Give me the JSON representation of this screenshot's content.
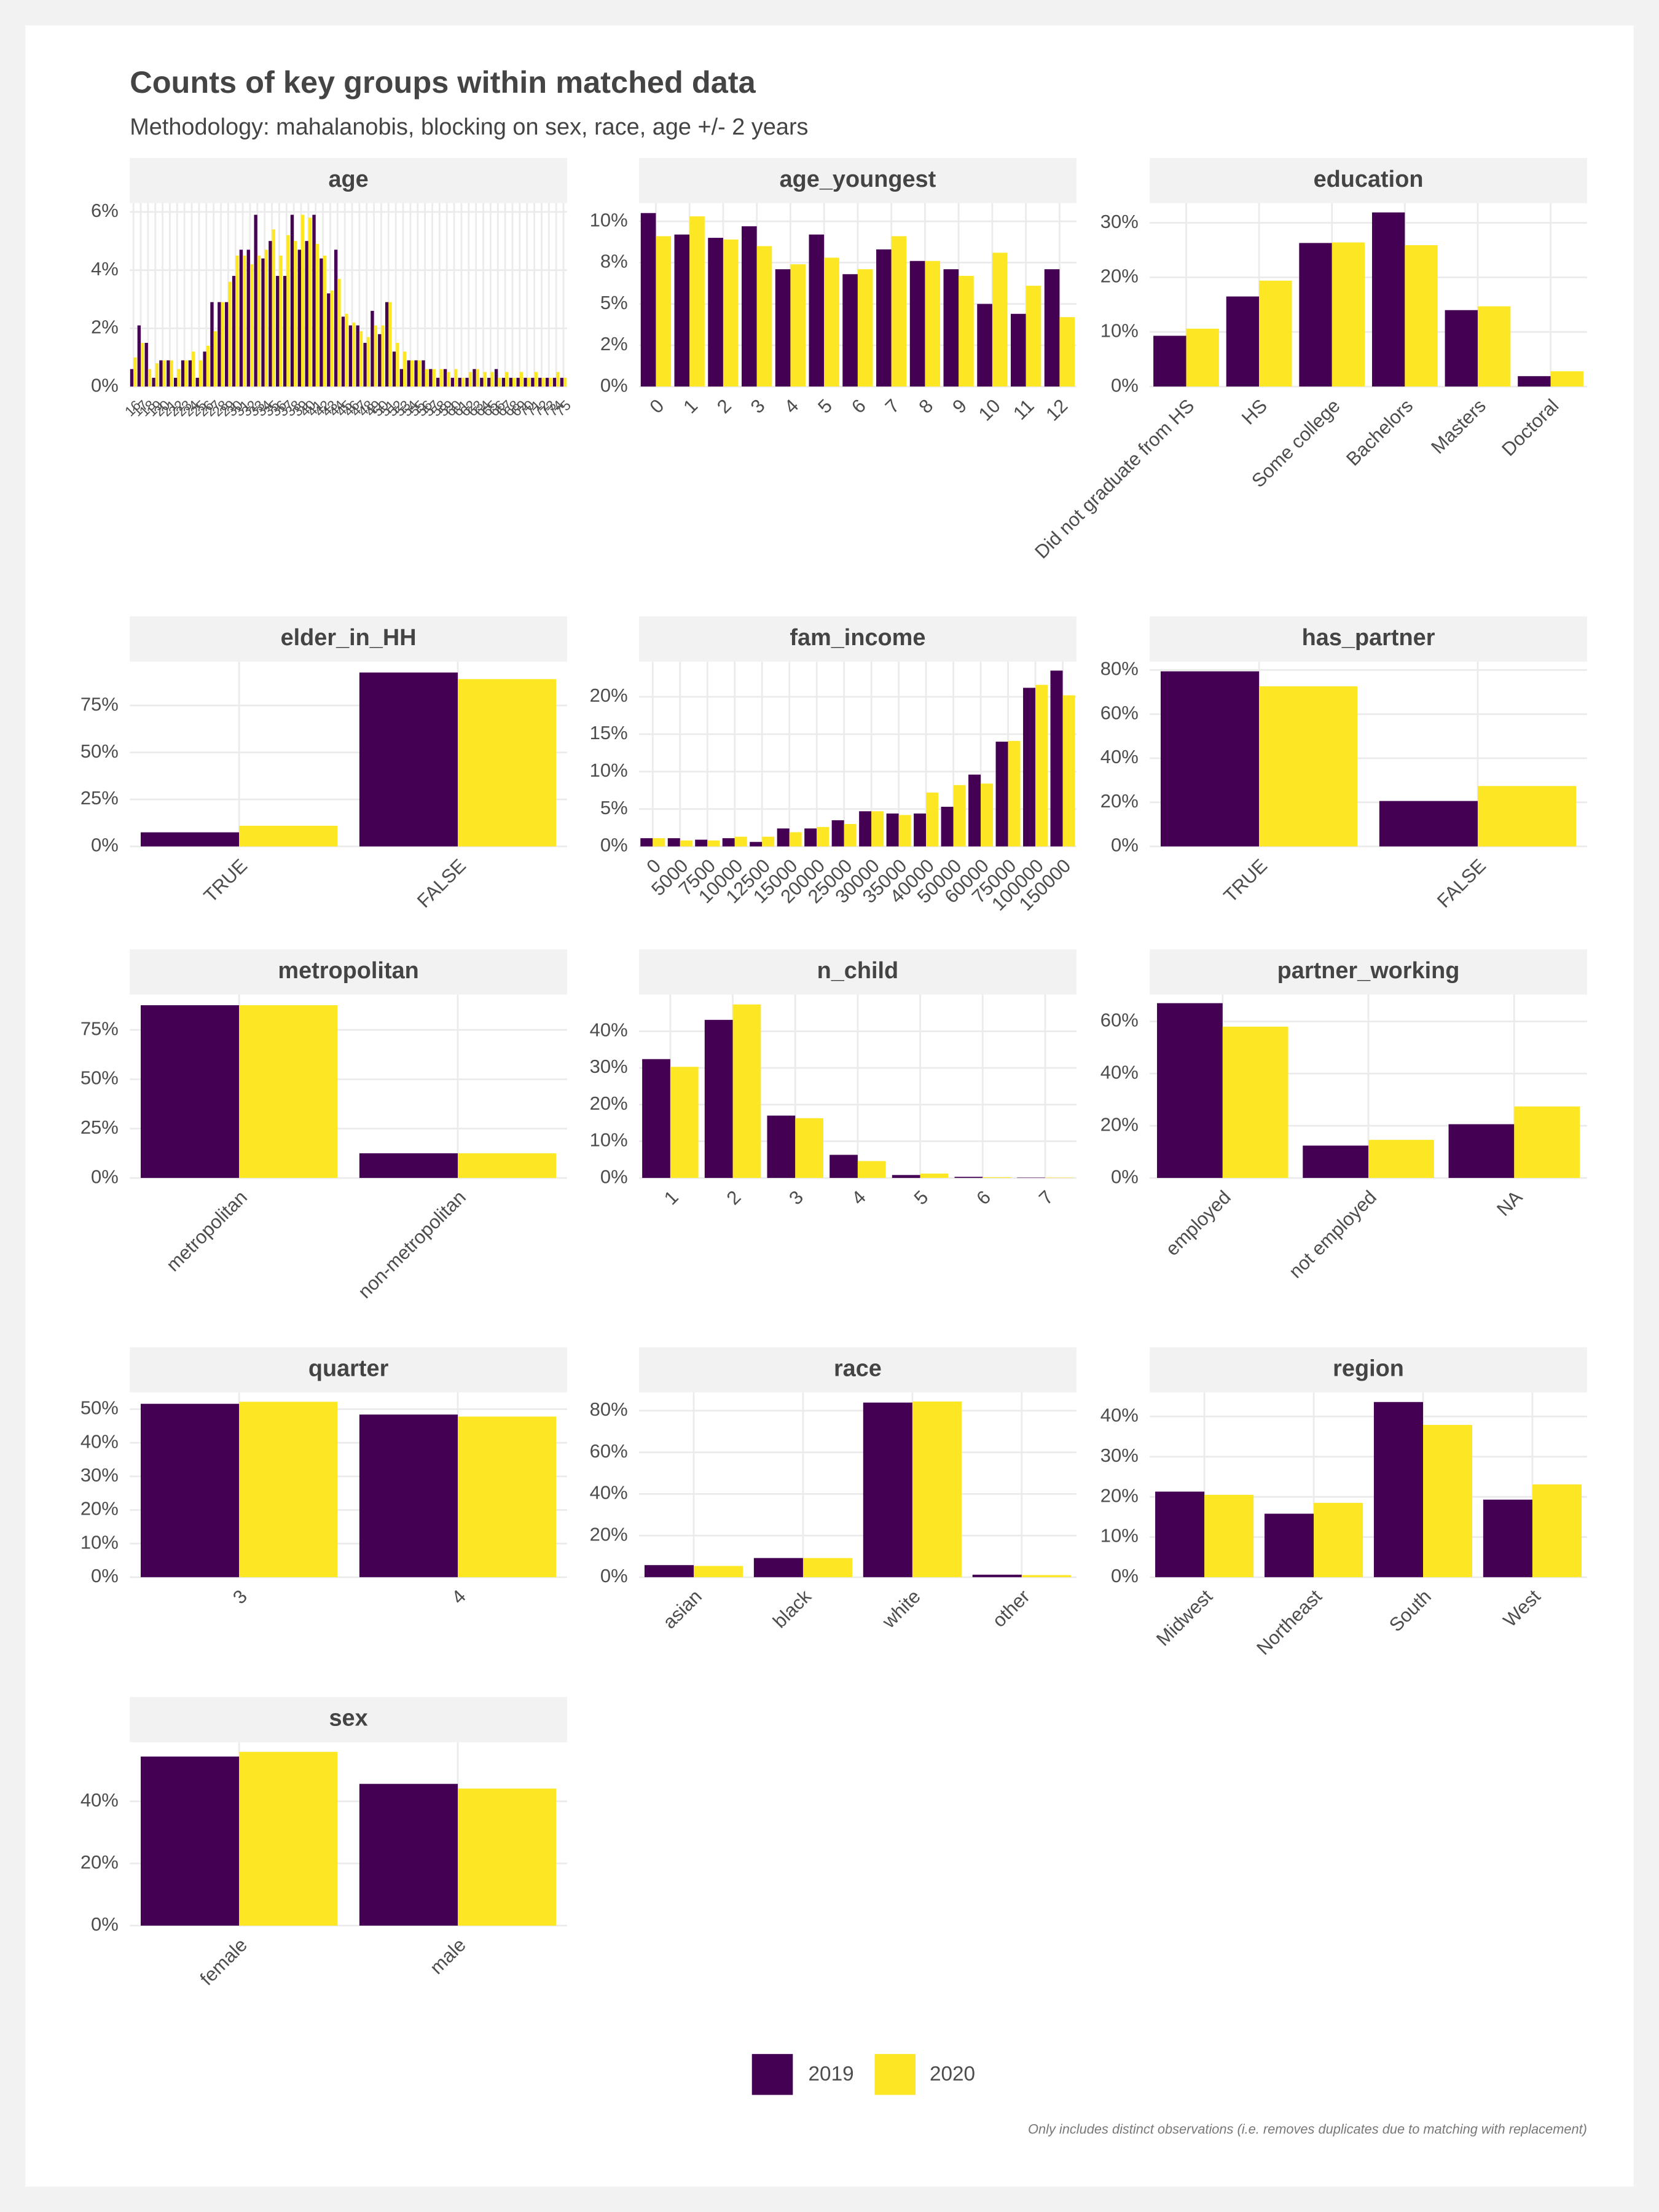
{
  "title": "Counts of key groups within matched data",
  "subtitle": "Methodology: mahalanobis, blocking on sex, race, age +/- 2 years",
  "caption": "Only includes distinct observations (i.e. removes duplicates due to matching with replacement)",
  "chart_data": [
    {
      "type": "bar",
      "title": "age",
      "categories": [
        "16",
        "17",
        "18",
        "19",
        "20",
        "21",
        "22",
        "23",
        "24",
        "25",
        "26",
        "27",
        "28",
        "29",
        "30",
        "31",
        "32",
        "33",
        "34",
        "35",
        "36",
        "37",
        "38",
        "39",
        "40",
        "41",
        "42",
        "43",
        "44",
        "45",
        "46",
        "47",
        "48",
        "49",
        "50",
        "51",
        "52",
        "53",
        "54",
        "55",
        "56",
        "57",
        "58",
        "59",
        "60",
        "61",
        "62",
        "63",
        "64",
        "65",
        "66",
        "67",
        "68",
        "69",
        "70",
        "71",
        "72",
        "73",
        "74",
        "75"
      ],
      "series": [
        {
          "name": "2019",
          "color": "#440154",
          "values": [
            0.6,
            2.1,
            1.5,
            0.3,
            0.9,
            0.9,
            0.3,
            0.9,
            0.9,
            0.3,
            1.2,
            2.9,
            2.9,
            2.9,
            3.8,
            4.7,
            4.7,
            5.9,
            4.4,
            5.0,
            3.8,
            3.8,
            5.9,
            4.7,
            5.0,
            5.9,
            4.4,
            3.2,
            4.7,
            2.4,
            2.1,
            2.1,
            1.5,
            2.6,
            1.8,
            2.9,
            1.2,
            0.6,
            0.9,
            0.9,
            0.9,
            0.6,
            0.3,
            0.6,
            0.3,
            0.3,
            0.3,
            0.6,
            0.3,
            0.3,
            0.6,
            0.3,
            0.3,
            0.3,
            0.3,
            0.3,
            0.3,
            0.3,
            0.3,
            0.3
          ]
        },
        {
          "name": "2020",
          "color": "#FDE725",
          "values": [
            1.0,
            1.5,
            0.6,
            0.8,
            0.9,
            0.9,
            0.6,
            0.9,
            1.2,
            0.9,
            1.4,
            1.9,
            2.9,
            3.6,
            4.5,
            4.5,
            4.2,
            4.5,
            4.7,
            5.4,
            4.5,
            5.2,
            5.0,
            5.9,
            5.8,
            4.9,
            4.5,
            3.3,
            3.7,
            2.5,
            2.2,
            1.9,
            1.7,
            2.1,
            2.1,
            2.9,
            1.5,
            1.2,
            0.9,
            0.9,
            0.6,
            0.6,
            0.6,
            0.5,
            0.6,
            0.3,
            0.5,
            0.6,
            0.5,
            0.5,
            0.3,
            0.5,
            0.3,
            0.5,
            0.3,
            0.5,
            0.3,
            0.3,
            0.5,
            0.3
          ]
        }
      ],
      "ylim": [
        0,
        6.3
      ],
      "yticks": [
        {
          "value": 0,
          "label": "0%"
        },
        {
          "value": 2,
          "label": "2%"
        },
        {
          "value": 4,
          "label": "4%"
        },
        {
          "value": 6,
          "label": "6%"
        }
      ]
    },
    {
      "type": "bar",
      "title": "age_youngest",
      "categories": [
        "0",
        "1",
        "2",
        "3",
        "4",
        "5",
        "6",
        "7",
        "8",
        "9",
        "10",
        "11",
        "12"
      ],
      "series": [
        {
          "name": "2019",
          "color": "#440154",
          "values": [
            10.5,
            9.2,
            9.0,
            9.7,
            7.1,
            9.2,
            6.8,
            8.3,
            7.6,
            7.1,
            5.0,
            4.4,
            7.1
          ]
        },
        {
          "name": "2020",
          "color": "#FDE725",
          "values": [
            9.1,
            10.3,
            8.9,
            8.5,
            7.4,
            7.8,
            7.1,
            9.1,
            7.6,
            6.7,
            8.1,
            6.1,
            4.2
          ]
        }
      ],
      "ylim": [
        0,
        11.1
      ],
      "yticks": [
        {
          "value": 0,
          "label": "0%"
        },
        {
          "value": 2.5,
          "label": "2%"
        },
        {
          "value": 5,
          "label": "5%"
        },
        {
          "value": 7.5,
          "label": "8%"
        },
        {
          "value": 10,
          "label": "10%"
        }
      ]
    },
    {
      "type": "bar",
      "title": "education",
      "categories": [
        "Did not graduate from HS",
        "HS",
        "Some college",
        "Bachelors",
        "Masters",
        "Doctoral"
      ],
      "series": [
        {
          "name": "2019",
          "color": "#440154",
          "values": [
            9.3,
            16.5,
            26.3,
            31.9,
            14.0,
            1.9
          ]
        },
        {
          "name": "2020",
          "color": "#FDE725",
          "values": [
            10.6,
            19.4,
            26.4,
            25.9,
            14.7,
            2.8
          ]
        }
      ],
      "ylim": [
        0,
        33.6
      ],
      "yticks": [
        {
          "value": 0,
          "label": "0%"
        },
        {
          "value": 10,
          "label": "10%"
        },
        {
          "value": 20,
          "label": "20%"
        },
        {
          "value": 30,
          "label": "30%"
        }
      ]
    },
    {
      "type": "bar",
      "title": "elder_in_HH",
      "categories": [
        "TRUE",
        "FALSE"
      ],
      "series": [
        {
          "name": "2019",
          "color": "#440154",
          "values": [
            7.5,
            92.5
          ]
        },
        {
          "name": "2020",
          "color": "#FDE725",
          "values": [
            11,
            89
          ]
        }
      ],
      "ylim": [
        0,
        98.3
      ],
      "yticks": [
        {
          "value": 0,
          "label": "0%"
        },
        {
          "value": 25,
          "label": "25%"
        },
        {
          "value": 50,
          "label": "50%"
        },
        {
          "value": 75,
          "label": "75%"
        }
      ]
    },
    {
      "type": "bar",
      "title": "fam_income",
      "categories": [
        "0",
        "5000",
        "7500",
        "10000",
        "12500",
        "15000",
        "20000",
        "25000",
        "30000",
        "35000",
        "40000",
        "50000",
        "60000",
        "75000",
        "100000",
        "150000"
      ],
      "series": [
        {
          "name": "2019",
          "color": "#440154",
          "values": [
            1.1,
            1.1,
            0.9,
            1.1,
            0.6,
            2.4,
            2.4,
            3.5,
            4.7,
            4.4,
            4.4,
            5.3,
            9.6,
            14.0,
            21.2,
            23.5
          ]
        },
        {
          "name": "2020",
          "color": "#FDE725",
          "values": [
            1.1,
            0.8,
            0.8,
            1.3,
            1.3,
            1.9,
            2.6,
            3.0,
            4.7,
            4.2,
            7.2,
            8.2,
            8.4,
            14.1,
            21.6,
            20.2
          ]
        }
      ],
      "ylim": [
        0,
        24.7
      ],
      "yticks": [
        {
          "value": 0,
          "label": "0%"
        },
        {
          "value": 5,
          "label": "5%"
        },
        {
          "value": 10,
          "label": "10%"
        },
        {
          "value": 15,
          "label": "15%"
        },
        {
          "value": 20,
          "label": "20%"
        }
      ]
    },
    {
      "type": "bar",
      "title": "has_partner",
      "categories": [
        "TRUE",
        "FALSE"
      ],
      "series": [
        {
          "name": "2019",
          "color": "#440154",
          "values": [
            79.4,
            20.6
          ]
        },
        {
          "name": "2020",
          "color": "#FDE725",
          "values": [
            72.6,
            27.4
          ]
        }
      ],
      "ylim": [
        0,
        83.8
      ],
      "yticks": [
        {
          "value": 0,
          "label": "0%"
        },
        {
          "value": 20,
          "label": "20%"
        },
        {
          "value": 40,
          "label": "40%"
        },
        {
          "value": 60,
          "label": "60%"
        },
        {
          "value": 80,
          "label": "80%"
        }
      ]
    },
    {
      "type": "bar",
      "title": "metropolitan",
      "categories": [
        "metropolitan",
        "non-metropolitan"
      ],
      "series": [
        {
          "name": "2019",
          "color": "#440154",
          "values": [
            87.5,
            12.5
          ]
        },
        {
          "name": "2020",
          "color": "#FDE725",
          "values": [
            87.5,
            12.5
          ]
        }
      ],
      "ylim": [
        0,
        92.9
      ],
      "yticks": [
        {
          "value": 0,
          "label": "0%"
        },
        {
          "value": 25,
          "label": "25%"
        },
        {
          "value": 50,
          "label": "50%"
        },
        {
          "value": 75,
          "label": "75%"
        }
      ]
    },
    {
      "type": "bar",
      "title": "n_child",
      "categories": [
        "1",
        "2",
        "3",
        "4",
        "5",
        "6",
        "7"
      ],
      "series": [
        {
          "name": "2019",
          "color": "#440154",
          "values": [
            32.4,
            43.1,
            17.0,
            6.3,
            0.8,
            0.3,
            0.1
          ]
        },
        {
          "name": "2020",
          "color": "#FDE725",
          "values": [
            30.3,
            47.3,
            16.3,
            4.6,
            1.2,
            0.2,
            0.1
          ]
        }
      ],
      "ylim": [
        0,
        50
      ],
      "yticks": [
        {
          "value": 0,
          "label": "0%"
        },
        {
          "value": 10,
          "label": "10%"
        },
        {
          "value": 20,
          "label": "20%"
        },
        {
          "value": 30,
          "label": "30%"
        },
        {
          "value": 40,
          "label": "40%"
        }
      ]
    },
    {
      "type": "bar",
      "title": "partner_working",
      "categories": [
        "employed",
        "not employed",
        "NA"
      ],
      "series": [
        {
          "name": "2019",
          "color": "#440154",
          "values": [
            67.0,
            12.4,
            20.6
          ]
        },
        {
          "name": "2020",
          "color": "#FDE725",
          "values": [
            58.0,
            14.6,
            27.4
          ]
        }
      ],
      "ylim": [
        0,
        70.3
      ],
      "yticks": [
        {
          "value": 0,
          "label": "0%"
        },
        {
          "value": 20,
          "label": "20%"
        },
        {
          "value": 40,
          "label": "40%"
        },
        {
          "value": 60,
          "label": "60%"
        }
      ]
    },
    {
      "type": "bar",
      "title": "quarter",
      "categories": [
        "3",
        "4"
      ],
      "series": [
        {
          "name": "2019",
          "color": "#440154",
          "values": [
            51.6,
            48.4
          ]
        },
        {
          "name": "2020",
          "color": "#FDE725",
          "values": [
            52.2,
            47.8
          ]
        }
      ],
      "ylim": [
        0,
        55
      ],
      "yticks": [
        {
          "value": 0,
          "label": "0%"
        },
        {
          "value": 10,
          "label": "10%"
        },
        {
          "value": 20,
          "label": "20%"
        },
        {
          "value": 30,
          "label": "30%"
        },
        {
          "value": 40,
          "label": "40%"
        },
        {
          "value": 50,
          "label": "50%"
        }
      ]
    },
    {
      "type": "bar",
      "title": "race",
      "categories": [
        "asian",
        "black",
        "white",
        "other"
      ],
      "series": [
        {
          "name": "2019",
          "color": "#440154",
          "values": [
            5.8,
            9.2,
            83.9,
            1.2
          ]
        },
        {
          "name": "2020",
          "color": "#FDE725",
          "values": [
            5.4,
            9.2,
            84.4,
            1.0
          ]
        }
      ],
      "ylim": [
        0,
        88.8
      ],
      "yticks": [
        {
          "value": 0,
          "label": "0%"
        },
        {
          "value": 20,
          "label": "20%"
        },
        {
          "value": 40,
          "label": "40%"
        },
        {
          "value": 60,
          "label": "60%"
        },
        {
          "value": 80,
          "label": "80%"
        }
      ]
    },
    {
      "type": "bar",
      "title": "region",
      "categories": [
        "Midwest",
        "Northeast",
        "South",
        "West"
      ],
      "series": [
        {
          "name": "2019",
          "color": "#440154",
          "values": [
            21.3,
            15.8,
            43.6,
            19.3
          ]
        },
        {
          "name": "2020",
          "color": "#FDE725",
          "values": [
            20.5,
            18.5,
            37.9,
            23.1
          ]
        }
      ],
      "ylim": [
        0,
        46
      ],
      "yticks": [
        {
          "value": 0,
          "label": "0%"
        },
        {
          "value": 10,
          "label": "10%"
        },
        {
          "value": 20,
          "label": "20%"
        },
        {
          "value": 30,
          "label": "30%"
        },
        {
          "value": 40,
          "label": "40%"
        }
      ]
    },
    {
      "type": "bar",
      "title": "sex",
      "categories": [
        "female",
        "male"
      ],
      "series": [
        {
          "name": "2019",
          "color": "#440154",
          "values": [
            54.4,
            45.6
          ]
        },
        {
          "name": "2020",
          "color": "#FDE725",
          "values": [
            55.9,
            44.1
          ]
        }
      ],
      "ylim": [
        0,
        59
      ],
      "yticks": [
        {
          "value": 0,
          "label": "0%"
        },
        {
          "value": 20,
          "label": "20%"
        },
        {
          "value": 40,
          "label": "40%"
        }
      ]
    }
  ]
}
